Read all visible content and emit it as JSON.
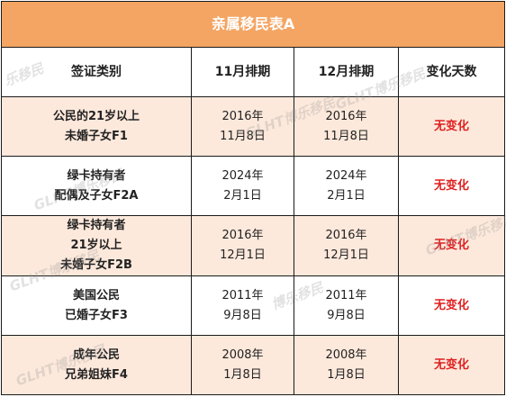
{
  "title": "亲属移民表A",
  "headers": [
    "签证类别",
    "11月排期",
    "12月排期",
    "变化天数"
  ],
  "rows": [
    {
      "category": [
        "公民的21岁以上",
        "未婚子女F1"
      ],
      "nov": [
        "2016年",
        "11月8日"
      ],
      "dec": [
        "2016年",
        "11月8日"
      ],
      "change": "无变化"
    },
    {
      "category": [
        "绿卡持有者",
        "配偶及子女F2A"
      ],
      "nov": [
        "2024年",
        "2月1日"
      ],
      "dec": [
        "2024年",
        "2月1日"
      ],
      "change": "无变化"
    },
    {
      "category": [
        "绿卡持有者",
        "21岁以上",
        "未婚子女F2B"
      ],
      "nov": [
        "2016年",
        "12月1日"
      ],
      "dec": [
        "2016年",
        "12月1日"
      ],
      "change": "无变化"
    },
    {
      "category": [
        "美国公民",
        "已婚子女F3"
      ],
      "nov": [
        "2011年",
        "9月8日"
      ],
      "dec": [
        "2011年",
        "9月8日"
      ],
      "change": "无变化"
    },
    {
      "category": [
        "成年公民",
        "兄弟姐妹F4"
      ],
      "nov": [
        "2008年",
        "1月8日"
      ],
      "dec": [
        "2008年",
        "1月8日"
      ],
      "change": "无变化"
    }
  ],
  "watermark": [
    "乐移民",
    "GLHT博乐移民",
    "博乐移民"
  ],
  "colors": {
    "title_bg": "#f4a563",
    "shaded_row": "#fde9dc",
    "change_text": "#e02020",
    "border": "#1a1a1a"
  }
}
